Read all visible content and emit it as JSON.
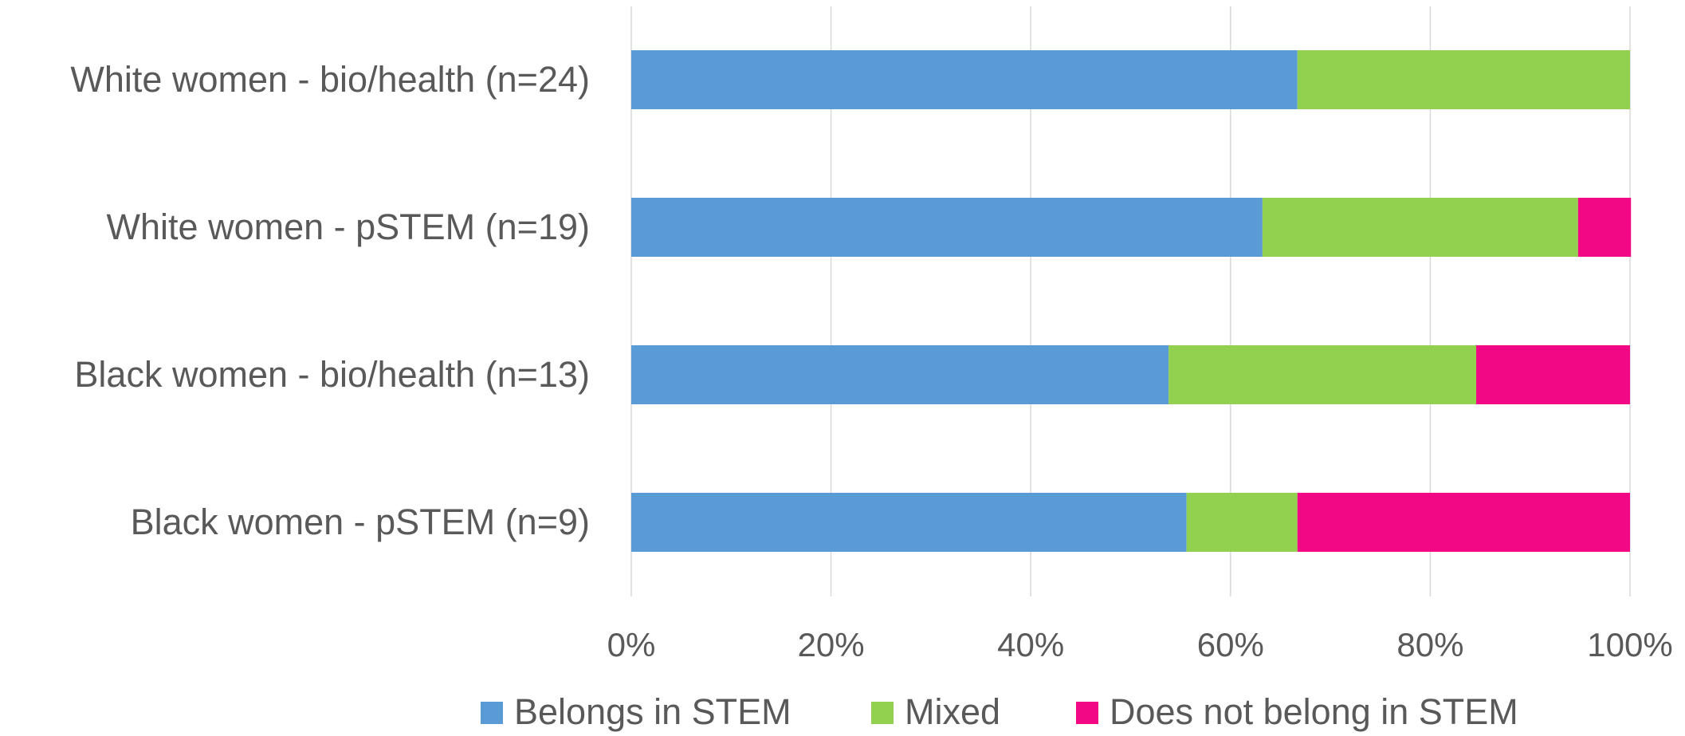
{
  "chart_data": {
    "type": "bar",
    "orientation": "horizontal",
    "stacked": "percent",
    "categories": [
      "White women - bio/health (n=24)",
      "White women - pSTEM (n=19)",
      "Black women - bio/health (n=13)",
      "Black women - pSTEM (n=9)"
    ],
    "series": [
      {
        "name": "Belongs in STEM",
        "color": "#5B9BD5",
        "values": [
          0.667,
          0.632,
          0.538,
          0.556
        ]
      },
      {
        "name": "Mixed",
        "color": "#92D050",
        "values": [
          0.333,
          0.316,
          0.308,
          0.111
        ]
      },
      {
        "name": "Does not belong in STEM",
        "color": "#F20884",
        "values": [
          0.0,
          0.053,
          0.154,
          0.333
        ]
      }
    ],
    "x_ticks": [
      "0%",
      "20%",
      "40%",
      "60%",
      "80%",
      "100%"
    ],
    "xlim": [
      0,
      1
    ],
    "grid": true,
    "legend_position": "bottom"
  }
}
